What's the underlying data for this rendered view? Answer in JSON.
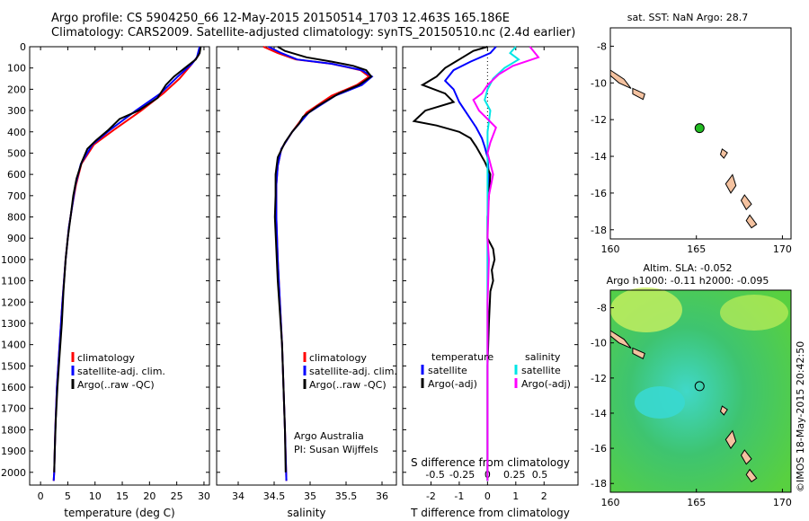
{
  "header": {
    "line1": "Argo profile: CS 5904250_66 12-May-2015 20150514_1703 12.463S 165.186E",
    "line2": "Climatology: CARS2009. Satellite-adjusted climatology: synTS_20150510.nc (2.4d earlier)"
  },
  "side_label": "©IMOS 18-May-2015 20:42:50",
  "colors": {
    "climatology": "#ff0000",
    "satellite": "#0000ff",
    "argo": "#000000",
    "sal_satellite": "#00e6e6",
    "sal_argo": "#ff00ff",
    "land": "#f4c2a0",
    "float_marker": "#22bb22"
  },
  "chart_data": [
    {
      "id": "temperature",
      "type": "line",
      "xlabel": "temperature (deg C)",
      "ylabel": "",
      "xlim": [
        -2,
        31
      ],
      "ylim": [
        2060,
        0
      ],
      "xticks": [
        0,
        5,
        10,
        15,
        20,
        25,
        30
      ],
      "yticks": [
        0,
        100,
        200,
        300,
        400,
        500,
        600,
        700,
        800,
        900,
        1000,
        1100,
        1200,
        1300,
        1400,
        1500,
        1600,
        1700,
        1800,
        1900,
        2000
      ],
      "legend": [
        "climatology",
        "satellite-adj. clim.",
        "Argo(..raw -QC)"
      ],
      "series": [
        {
          "name": "climatology",
          "color": "#ff0000",
          "points": [
            [
              29.3,
              0
            ],
            [
              29.0,
              40
            ],
            [
              27.5,
              90
            ],
            [
              25.5,
              150
            ],
            [
              22.5,
              220
            ],
            [
              18.5,
              300
            ],
            [
              13.5,
              390
            ],
            [
              9.8,
              460
            ],
            [
              7.5,
              550
            ],
            [
              6.5,
              650
            ],
            [
              5.8,
              750
            ],
            [
              5.2,
              850
            ],
            [
              4.6,
              1000
            ],
            [
              4.0,
              1200
            ],
            [
              3.5,
              1400
            ],
            [
              3.0,
              1600
            ],
            [
              2.7,
              1800
            ],
            [
              2.5,
              2000
            ],
            [
              2.4,
              2040
            ]
          ]
        },
        {
          "name": "satellite-adj. clim.",
          "color": "#0000ff",
          "points": [
            [
              29.2,
              0
            ],
            [
              28.7,
              50
            ],
            [
              27.8,
              80
            ],
            [
              25.2,
              140
            ],
            [
              22.0,
              220
            ],
            [
              17.5,
              300
            ],
            [
              12.8,
              390
            ],
            [
              9.5,
              460
            ],
            [
              7.4,
              550
            ],
            [
              6.4,
              650
            ],
            [
              5.8,
              750
            ],
            [
              5.2,
              850
            ],
            [
              4.6,
              1000
            ],
            [
              4.0,
              1200
            ],
            [
              3.5,
              1400
            ],
            [
              3.0,
              1600
            ],
            [
              2.7,
              1800
            ],
            [
              2.5,
              2000
            ],
            [
              2.4,
              2040
            ]
          ]
        },
        {
          "name": "Argo(..raw -QC)",
          "color": "#000000",
          "points": [
            [
              29.4,
              0
            ],
            [
              29.2,
              30
            ],
            [
              28.5,
              60
            ],
            [
              26.5,
              100
            ],
            [
              24.5,
              140
            ],
            [
              23.0,
              180
            ],
            [
              21.5,
              240
            ],
            [
              18.0,
              300
            ],
            [
              14.5,
              340
            ],
            [
              12.5,
              390
            ],
            [
              10.2,
              440
            ],
            [
              8.6,
              480
            ],
            [
              7.6,
              540
            ],
            [
              6.6,
              620
            ],
            [
              6.0,
              700
            ],
            [
              5.5,
              800
            ],
            [
              5.0,
              900
            ],
            [
              4.6,
              1000
            ],
            [
              4.2,
              1150
            ],
            [
              3.9,
              1300
            ],
            [
              3.5,
              1450
            ],
            [
              3.1,
              1600
            ],
            [
              2.8,
              1750
            ],
            [
              2.6,
              1900
            ],
            [
              2.5,
              2000
            ]
          ]
        }
      ]
    },
    {
      "id": "salinity",
      "type": "line",
      "xlabel": "salinity",
      "xlim": [
        33.7,
        36.2
      ],
      "ylim": [
        2060,
        0
      ],
      "xticks": [
        34,
        34.5,
        35,
        35.5,
        36
      ],
      "legend": [
        "climatology",
        "satellite-adj. clim.",
        "Argo(..raw -QC)"
      ],
      "annotation": [
        "Argo Australia",
        "PI: Susan Wijffels"
      ],
      "series": [
        {
          "name": "climatology",
          "color": "#ff0000",
          "points": [
            [
              34.35,
              0
            ],
            [
              34.55,
              30
            ],
            [
              34.8,
              60
            ],
            [
              35.3,
              80
            ],
            [
              35.7,
              110
            ],
            [
              35.82,
              140
            ],
            [
              35.65,
              180
            ],
            [
              35.3,
              230
            ],
            [
              34.95,
              310
            ],
            [
              34.75,
              400
            ],
            [
              34.6,
              480
            ],
            [
              34.55,
              560
            ],
            [
              34.53,
              650
            ],
            [
              34.53,
              800
            ],
            [
              34.55,
              1000
            ],
            [
              34.58,
              1200
            ],
            [
              34.61,
              1400
            ],
            [
              34.63,
              1600
            ],
            [
              34.65,
              1800
            ],
            [
              34.67,
              2040
            ]
          ]
        },
        {
          "name": "satellite-adj. clim.",
          "color": "#0000ff",
          "points": [
            [
              34.42,
              0
            ],
            [
              34.6,
              30
            ],
            [
              34.82,
              60
            ],
            [
              35.3,
              80
            ],
            [
              35.72,
              110
            ],
            [
              35.86,
              140
            ],
            [
              35.72,
              180
            ],
            [
              35.35,
              230
            ],
            [
              34.98,
              310
            ],
            [
              34.75,
              400
            ],
            [
              34.6,
              480
            ],
            [
              34.55,
              560
            ],
            [
              34.53,
              650
            ],
            [
              34.53,
              800
            ],
            [
              34.55,
              1000
            ],
            [
              34.58,
              1200
            ],
            [
              34.61,
              1400
            ],
            [
              34.63,
              1600
            ],
            [
              34.65,
              1800
            ],
            [
              34.67,
              2040
            ]
          ]
        },
        {
          "name": "Argo(..raw -QC)",
          "color": "#000000",
          "points": [
            [
              34.55,
              0
            ],
            [
              34.65,
              20
            ],
            [
              34.95,
              50
            ],
            [
              35.3,
              70
            ],
            [
              35.6,
              90
            ],
            [
              35.78,
              110
            ],
            [
              35.85,
              140
            ],
            [
              35.68,
              180
            ],
            [
              35.4,
              220
            ],
            [
              35.1,
              280
            ],
            [
              34.9,
              330
            ],
            [
              34.85,
              360
            ],
            [
              34.75,
              400
            ],
            [
              34.65,
              450
            ],
            [
              34.55,
              520
            ],
            [
              34.52,
              600
            ],
            [
              34.52,
              700
            ],
            [
              34.51,
              800
            ],
            [
              34.53,
              950
            ],
            [
              34.55,
              1100
            ],
            [
              34.58,
              1250
            ],
            [
              34.61,
              1400
            ],
            [
              34.63,
              1600
            ],
            [
              34.65,
              1800
            ],
            [
              34.66,
              2000
            ]
          ]
        }
      ]
    },
    {
      "id": "difference",
      "type": "line",
      "xlabel": "T difference from climatology",
      "toplabel": "S difference from climatology",
      "xlim": [
        -3.0,
        3.2
      ],
      "ylim": [
        2060,
        0
      ],
      "xticks": [
        -2,
        -1,
        0,
        1,
        2
      ],
      "sticks": [
        "-0.5",
        "-0.25",
        "0",
        "0.25",
        "0.5"
      ],
      "legend": {
        "temperature": "temperature",
        "salinity": "salinity",
        "t_sat": "satellite",
        "t_argo": "Argo(-adj)",
        "s_sat": "satellite",
        "s_argo": "Argo(-adj)"
      },
      "series": [
        {
          "name": "satellite",
          "group": "temperature",
          "color": "#0000ff",
          "points": [
            [
              0.3,
              0
            ],
            [
              0.1,
              30
            ],
            [
              -0.6,
              70
            ],
            [
              -1.2,
              110
            ],
            [
              -1.5,
              160
            ],
            [
              -1.2,
              200
            ],
            [
              -1.0,
              260
            ],
            [
              -0.8,
              300
            ],
            [
              -0.6,
              340
            ],
            [
              -0.4,
              380
            ],
            [
              -0.2,
              430
            ],
            [
              -0.1,
              470
            ],
            [
              0.0,
              520
            ],
            [
              0.05,
              600
            ],
            [
              0.0,
              800
            ],
            [
              0.0,
              2040
            ]
          ]
        },
        {
          "name": "Argo(-adj)",
          "group": "temperature",
          "color": "#000000",
          "points": [
            [
              0.0,
              0
            ],
            [
              -0.5,
              20
            ],
            [
              -1.0,
              60
            ],
            [
              -1.5,
              100
            ],
            [
              -1.8,
              140
            ],
            [
              -2.3,
              180
            ],
            [
              -1.5,
              220
            ],
            [
              -1.2,
              260
            ],
            [
              -2.2,
              300
            ],
            [
              -2.6,
              350
            ],
            [
              -1.8,
              370
            ],
            [
              -1.0,
              400
            ],
            [
              -0.6,
              430
            ],
            [
              -0.4,
              470
            ],
            [
              -0.1,
              540
            ],
            [
              0.1,
              600
            ],
            [
              0.05,
              700
            ],
            [
              0.0,
              800
            ],
            [
              0.0,
              900
            ],
            [
              0.2,
              950
            ],
            [
              0.25,
              1000
            ],
            [
              0.15,
              1050
            ],
            [
              0.2,
              1100
            ],
            [
              0.1,
              1150
            ],
            [
              0.05,
              1300
            ],
            [
              0.0,
              1500
            ],
            [
              0.0,
              1700
            ],
            [
              0.0,
              1900
            ],
            [
              0.0,
              2040
            ]
          ]
        },
        {
          "name": "satellite",
          "group": "salinity",
          "color": "#00e6e6",
          "points": [
            [
              1.0,
              0
            ],
            [
              0.8,
              30
            ],
            [
              1.1,
              60
            ],
            [
              0.6,
              100
            ],
            [
              0.2,
              150
            ],
            [
              0.0,
              200
            ],
            [
              -0.1,
              250
            ],
            [
              0.1,
              300
            ],
            [
              0.0,
              400
            ],
            [
              0.0,
              600
            ],
            [
              0.0,
              1000
            ],
            [
              0.0,
              2040
            ]
          ]
        },
        {
          "name": "Argo(-adj)",
          "group": "salinity",
          "color": "#ff00ff",
          "points": [
            [
              1.5,
              0
            ],
            [
              1.8,
              50
            ],
            [
              0.9,
              90
            ],
            [
              0.4,
              130
            ],
            [
              0.0,
              180
            ],
            [
              -0.2,
              220
            ],
            [
              -0.5,
              250
            ],
            [
              -0.3,
              300
            ],
            [
              0.0,
              340
            ],
            [
              0.3,
              380
            ],
            [
              0.1,
              450
            ],
            [
              0.0,
              500
            ],
            [
              0.2,
              600
            ],
            [
              0.05,
              700
            ],
            [
              0.0,
              900
            ],
            [
              0.05,
              1000
            ],
            [
              0.0,
              1200
            ],
            [
              0.0,
              1400
            ],
            [
              0.0,
              2040
            ]
          ]
        }
      ]
    },
    {
      "id": "sst_map",
      "type": "map",
      "title": "sat. SST: NaN Argo: 28.7",
      "xlim": [
        160,
        170.5
      ],
      "ylim": [
        -18.5,
        -7
      ],
      "xticks": [
        160,
        165,
        170
      ],
      "yticks": [
        -8,
        -10,
        -12,
        -14,
        -16,
        -18
      ],
      "float_position": [
        165.186,
        -12.463
      ]
    },
    {
      "id": "sla_map",
      "type": "map",
      "title": "Altim. SLA: -0.052",
      "subtitle": "Argo h1000: -0.11 h2000: -0.095",
      "xlim": [
        160,
        170.5
      ],
      "ylim": [
        -18.5,
        -7
      ],
      "xticks": [
        160,
        165,
        170
      ],
      "yticks": [
        -8,
        -10,
        -12,
        -14,
        -16,
        -18
      ],
      "float_position": [
        165.186,
        -12.463
      ]
    }
  ]
}
